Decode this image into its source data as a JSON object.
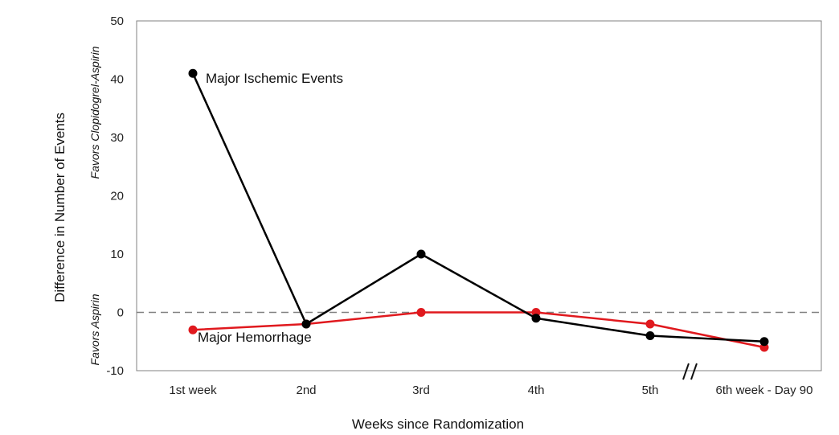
{
  "chart_data": {
    "type": "line",
    "categories": [
      "1st week",
      "2nd",
      "3rd",
      "4th",
      "5th",
      "6th week - Day 90"
    ],
    "series": [
      {
        "name": "Major Ischemic Events",
        "values": [
          41,
          -2,
          10,
          -1,
          -4,
          -5
        ],
        "color": "#000000"
      },
      {
        "name": "Major Hemorrhage",
        "values": [
          -3,
          -2,
          0,
          0,
          -2,
          -6
        ],
        "color": "#e0191e"
      }
    ],
    "xlabel": "Weeks since Randomization",
    "ylabel": "Difference in Number of Events",
    "favors_top": "Favors Clopidogrel-Aspirin",
    "favors_bottom": "Favors Aspirin",
    "ylim": [
      -10,
      50
    ],
    "yticks": [
      50,
      40,
      30,
      20,
      10,
      0,
      -10
    ],
    "reference_line": {
      "y": 0,
      "style": "dashed",
      "color": "#808080"
    },
    "axis_break": {
      "between": [
        "5th",
        "6th week - Day 90"
      ],
      "symbol": "//"
    },
    "grid": false,
    "legend": "inline"
  }
}
